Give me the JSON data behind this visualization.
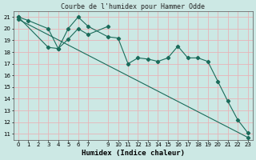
{
  "title": "Courbe de l'humidex pour Hammer Odde",
  "xlabel": "Humidex (Indice chaleur)",
  "bg_color": "#cce8e4",
  "grid_color": "#e8b4b8",
  "line_color": "#1a6b5a",
  "line1": {
    "x": [
      0,
      1,
      3,
      4,
      5,
      6,
      7,
      9,
      10,
      11,
      12,
      13,
      14,
      15,
      16,
      17,
      18,
      19,
      20,
      21,
      22,
      23
    ],
    "y": [
      21,
      20.7,
      20,
      18.3,
      20,
      21,
      20.2,
      19.3,
      19.2,
      17,
      17.5,
      17.4,
      17.2,
      17.5,
      18.5,
      17.5,
      17.5,
      17.2,
      15.5,
      13.8,
      12.2,
      11.1
    ]
  },
  "line2": {
    "x": [
      0,
      3,
      4,
      5,
      6,
      7,
      9
    ],
    "y": [
      21,
      18.4,
      18.3,
      19.1,
      20,
      19.5,
      20.2
    ]
  },
  "line3": {
    "x": [
      0,
      23
    ],
    "y": [
      20.8,
      10.7
    ]
  },
  "xlim": [
    -0.5,
    23.5
  ],
  "ylim": [
    10.5,
    21.5
  ],
  "yticks": [
    11,
    12,
    13,
    14,
    15,
    16,
    17,
    18,
    19,
    20,
    21
  ],
  "xticks": [
    0,
    1,
    2,
    3,
    4,
    5,
    6,
    7,
    9,
    10,
    11,
    12,
    13,
    14,
    15,
    16,
    17,
    18,
    19,
    20,
    21,
    22,
    23
  ],
  "title_fontsize": 6,
  "tick_fontsize": 5,
  "label_fontsize": 6.5
}
